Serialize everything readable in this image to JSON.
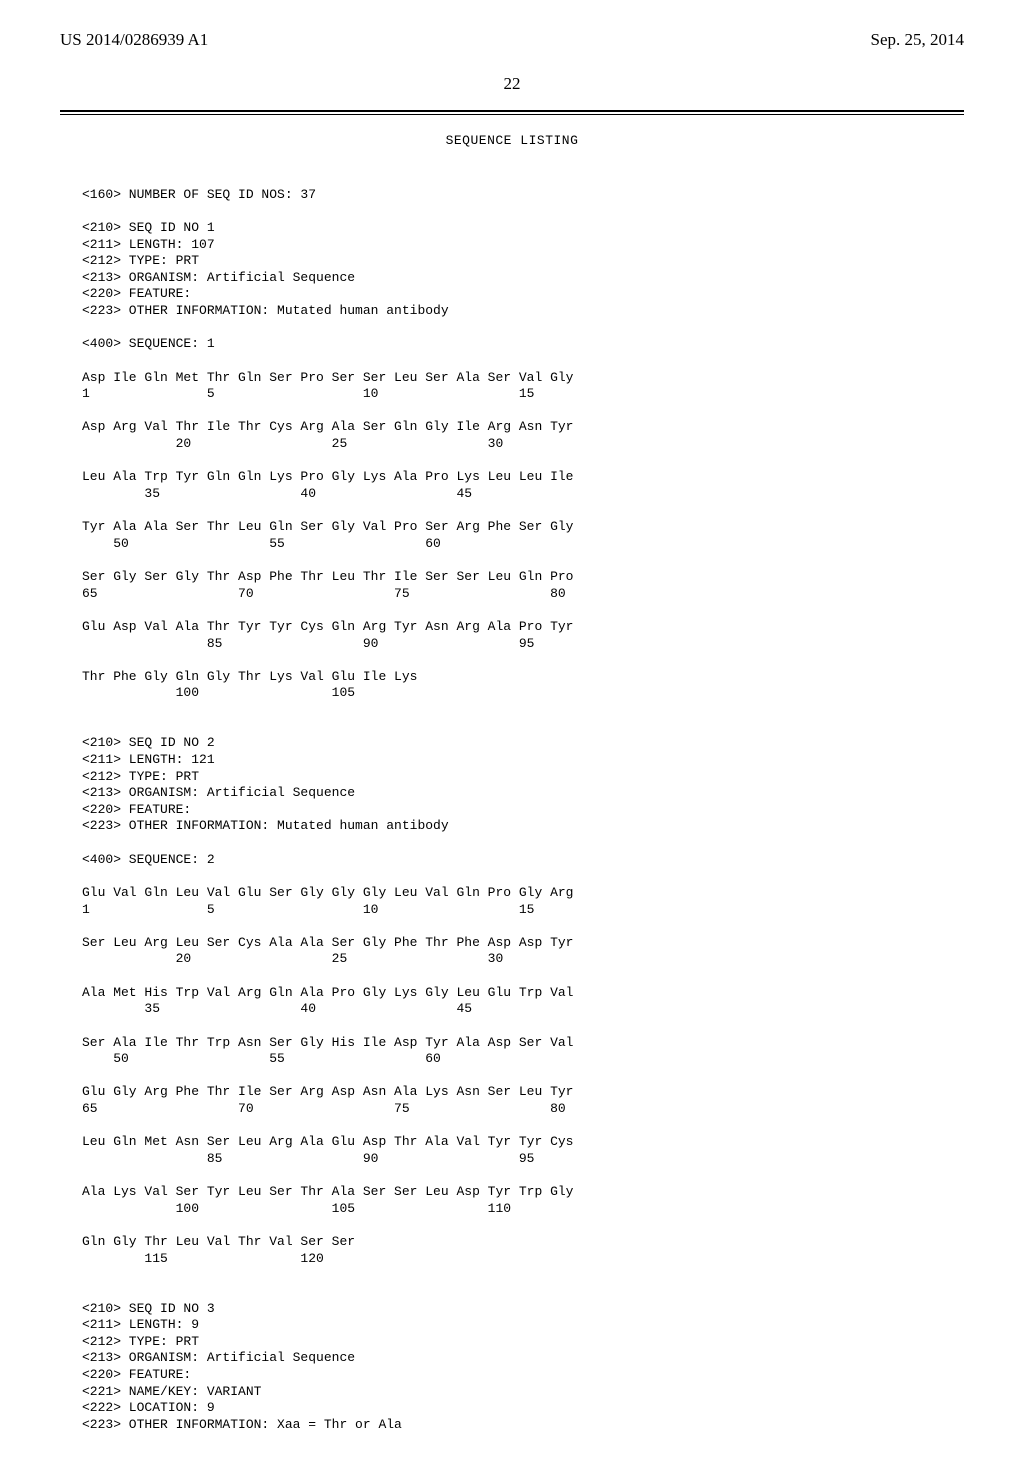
{
  "header": {
    "pub_number": "US 2014/0286939 A1",
    "pub_date": "Sep. 25, 2014",
    "page_number": "22"
  },
  "title": "SEQUENCE LISTING",
  "lines": [
    "",
    "<160> NUMBER OF SEQ ID NOS: 37",
    "",
    "<210> SEQ ID NO 1",
    "<211> LENGTH: 107",
    "<212> TYPE: PRT",
    "<213> ORGANISM: Artificial Sequence",
    "<220> FEATURE:",
    "<223> OTHER INFORMATION: Mutated human antibody",
    "",
    "<400> SEQUENCE: 1",
    "",
    "Asp Ile Gln Met Thr Gln Ser Pro Ser Ser Leu Ser Ala Ser Val Gly",
    "1               5                   10                  15",
    "",
    "Asp Arg Val Thr Ile Thr Cys Arg Ala Ser Gln Gly Ile Arg Asn Tyr",
    "            20                  25                  30",
    "",
    "Leu Ala Trp Tyr Gln Gln Lys Pro Gly Lys Ala Pro Lys Leu Leu Ile",
    "        35                  40                  45",
    "",
    "Tyr Ala Ala Ser Thr Leu Gln Ser Gly Val Pro Ser Arg Phe Ser Gly",
    "    50                  55                  60",
    "",
    "Ser Gly Ser Gly Thr Asp Phe Thr Leu Thr Ile Ser Ser Leu Gln Pro",
    "65                  70                  75                  80",
    "",
    "Glu Asp Val Ala Thr Tyr Tyr Cys Gln Arg Tyr Asn Arg Ala Pro Tyr",
    "                85                  90                  95",
    "",
    "Thr Phe Gly Gln Gly Thr Lys Val Glu Ile Lys",
    "            100                 105",
    "",
    "",
    "<210> SEQ ID NO 2",
    "<211> LENGTH: 121",
    "<212> TYPE: PRT",
    "<213> ORGANISM: Artificial Sequence",
    "<220> FEATURE:",
    "<223> OTHER INFORMATION: Mutated human antibody",
    "",
    "<400> SEQUENCE: 2",
    "",
    "Glu Val Gln Leu Val Glu Ser Gly Gly Gly Leu Val Gln Pro Gly Arg",
    "1               5                   10                  15",
    "",
    "Ser Leu Arg Leu Ser Cys Ala Ala Ser Gly Phe Thr Phe Asp Asp Tyr",
    "            20                  25                  30",
    "",
    "Ala Met His Trp Val Arg Gln Ala Pro Gly Lys Gly Leu Glu Trp Val",
    "        35                  40                  45",
    "",
    "Ser Ala Ile Thr Trp Asn Ser Gly His Ile Asp Tyr Ala Asp Ser Val",
    "    50                  55                  60",
    "",
    "Glu Gly Arg Phe Thr Ile Ser Arg Asp Asn Ala Lys Asn Ser Leu Tyr",
    "65                  70                  75                  80",
    "",
    "Leu Gln Met Asn Ser Leu Arg Ala Glu Asp Thr Ala Val Tyr Tyr Cys",
    "                85                  90                  95",
    "",
    "Ala Lys Val Ser Tyr Leu Ser Thr Ala Ser Ser Leu Asp Tyr Trp Gly",
    "            100                 105                 110",
    "",
    "Gln Gly Thr Leu Val Thr Val Ser Ser",
    "        115                 120",
    "",
    "",
    "<210> SEQ ID NO 3",
    "<211> LENGTH: 9",
    "<212> TYPE: PRT",
    "<213> ORGANISM: Artificial Sequence",
    "<220> FEATURE:",
    "<221> NAME/KEY: VARIANT",
    "<222> LOCATION: 9",
    "<223> OTHER INFORMATION: Xaa = Thr or Ala"
  ]
}
